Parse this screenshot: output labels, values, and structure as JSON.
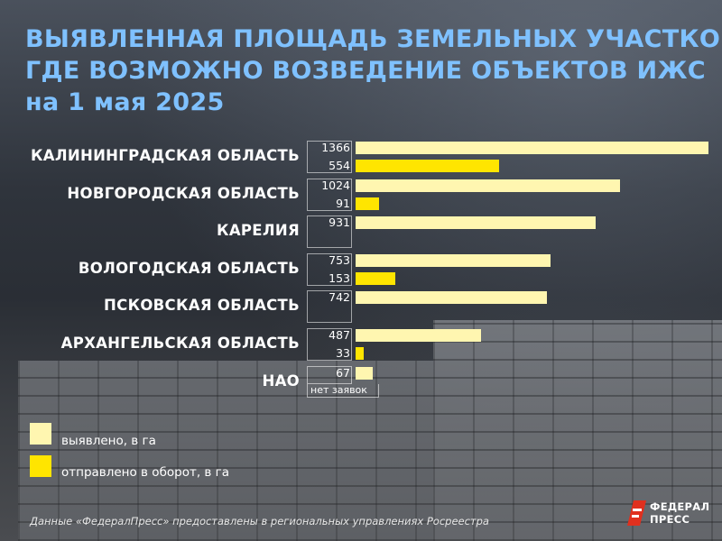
{
  "title": {
    "line1": "ВЫЯВЛЕННАЯ ПЛОЩАДЬ ЗЕМЕЛЬНЫХ УЧАСТКОВ,",
    "line2": "ГДЕ ВОЗМОЖНО ВОЗВЕДЕНИЕ ОБЪЕКТОВ ИЖС",
    "line3": "на 1 мая 2025"
  },
  "colors": {
    "title": "#7fc1ff",
    "identified": "#fff6b0",
    "sent": "#ffe500"
  },
  "chart_data": {
    "type": "bar",
    "orientation": "horizontal",
    "categories": [
      "КАЛИНИНГРАДСКАЯ ОБЛАСТЬ",
      "НОВГОРОДСКАЯ ОБЛАСТЬ",
      "КАРЕЛИЯ",
      "ВОЛОГОДСКАЯ ОБЛАСТЬ",
      "ПСКОВСКАЯ ОБЛАСТЬ",
      "АРХАНГЕЛЬСКАЯ ОБЛАСТЬ",
      "НАО"
    ],
    "series": [
      {
        "name": "выявлено, в га",
        "values": [
          1366,
          1024,
          931,
          753,
          742,
          487,
          67
        ],
        "color": "#fff6b0"
      },
      {
        "name": "отправлено в оборот,  в га",
        "values": [
          554,
          91,
          null,
          153,
          null,
          33,
          null
        ],
        "color": "#ffe500"
      }
    ],
    "value_labels": {
      "identified": [
        "1366",
        "1024",
        "931",
        "753",
        "742",
        "487",
        "67"
      ],
      "sent": [
        "554",
        "91",
        "",
        "153",
        "",
        "33",
        "нет заявок"
      ]
    },
    "xlim": [
      0,
      1366
    ],
    "grid": false,
    "legend": "bottom-left"
  },
  "source": "Данные «ФедералПресс» предоставлены в региональных управлениях Росреестра",
  "logo": {
    "line1": "ФЕДЕРАЛ",
    "line2": "ПРЕСС"
  }
}
